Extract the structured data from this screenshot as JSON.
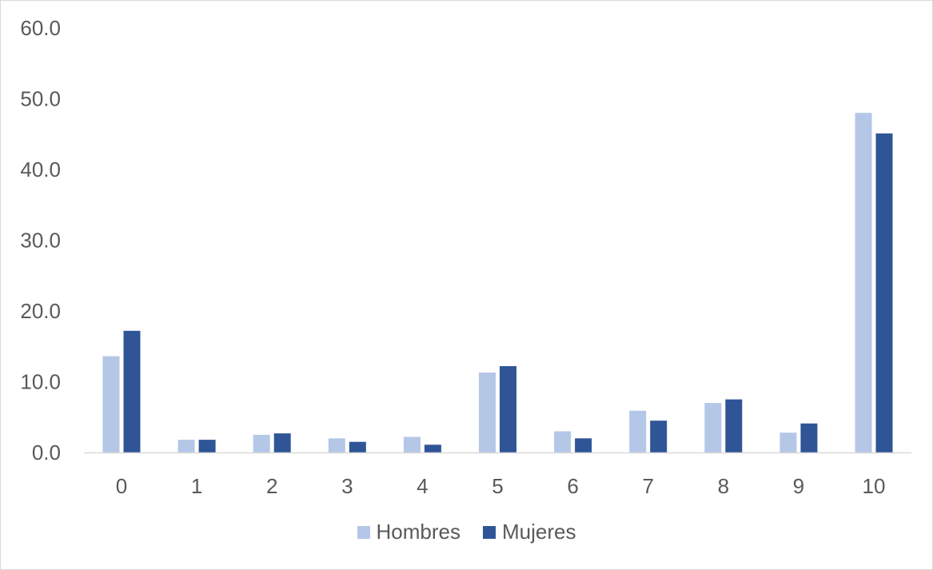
{
  "chart_data": {
    "type": "bar",
    "title": "",
    "xlabel": "",
    "ylabel": "",
    "categories": [
      "0",
      "1",
      "2",
      "3",
      "4",
      "5",
      "6",
      "7",
      "8",
      "9",
      "10"
    ],
    "series": [
      {
        "name": "Hombres",
        "color": "#b4c7e7",
        "values": [
          13.6,
          1.8,
          2.5,
          2.0,
          2.2,
          11.3,
          3.0,
          5.9,
          7.0,
          2.8,
          48.0
        ]
      },
      {
        "name": "Mujeres",
        "color": "#2f5597",
        "values": [
          17.2,
          1.8,
          2.7,
          1.5,
          1.1,
          12.2,
          2.0,
          4.5,
          7.5,
          4.1,
          45.1
        ]
      }
    ],
    "ylim": [
      0,
      60
    ],
    "yticks": [
      "0.0",
      "10.0",
      "20.0",
      "30.0",
      "40.0",
      "50.0",
      "60.0"
    ],
    "grid": false,
    "legend_position": "bottom"
  }
}
